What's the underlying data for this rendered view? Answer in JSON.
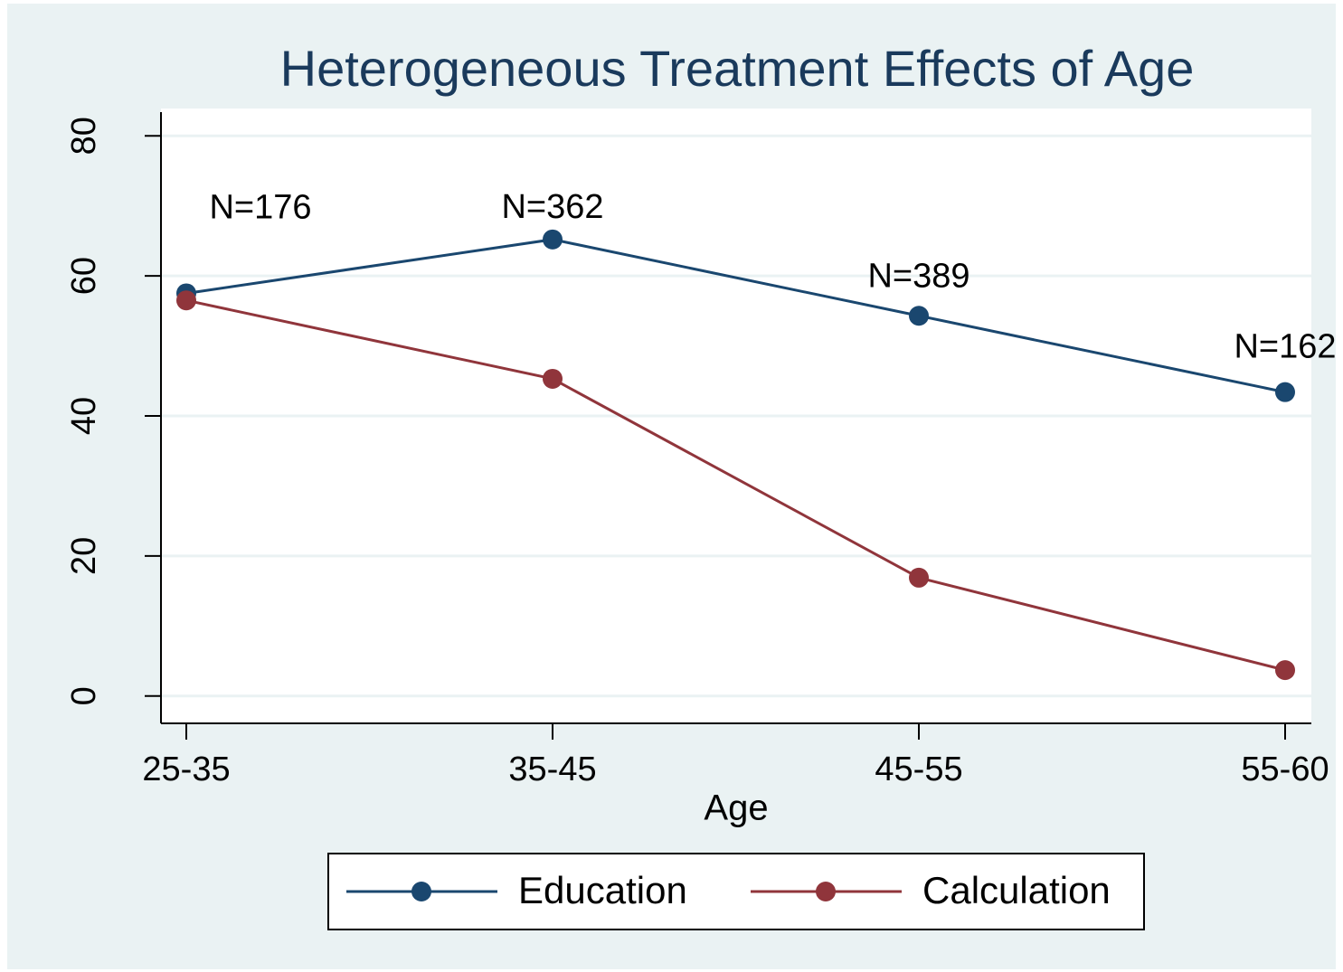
{
  "chart_data": {
    "type": "line",
    "title": "Heterogeneous Treatment Effects of Age",
    "x_label": "Age",
    "categories": [
      "25-35",
      "35-45",
      "45-55",
      "55-60"
    ],
    "series": [
      {
        "name": "Education",
        "color": "#1a476f",
        "values": [
          57.5,
          65.2,
          54.3,
          43.4
        ]
      },
      {
        "name": "Calculation",
        "color": "#90353b",
        "values": [
          56.5,
          45.3,
          16.9,
          3.7
        ]
      }
    ],
    "annotations": [
      "N=176",
      "N=362",
      "N=389",
      "N=162"
    ],
    "ylim": [
      -3.9,
      83.9
    ],
    "yticks": [
      0,
      20,
      40,
      60,
      80
    ],
    "grid": true,
    "legend": "bottom"
  }
}
